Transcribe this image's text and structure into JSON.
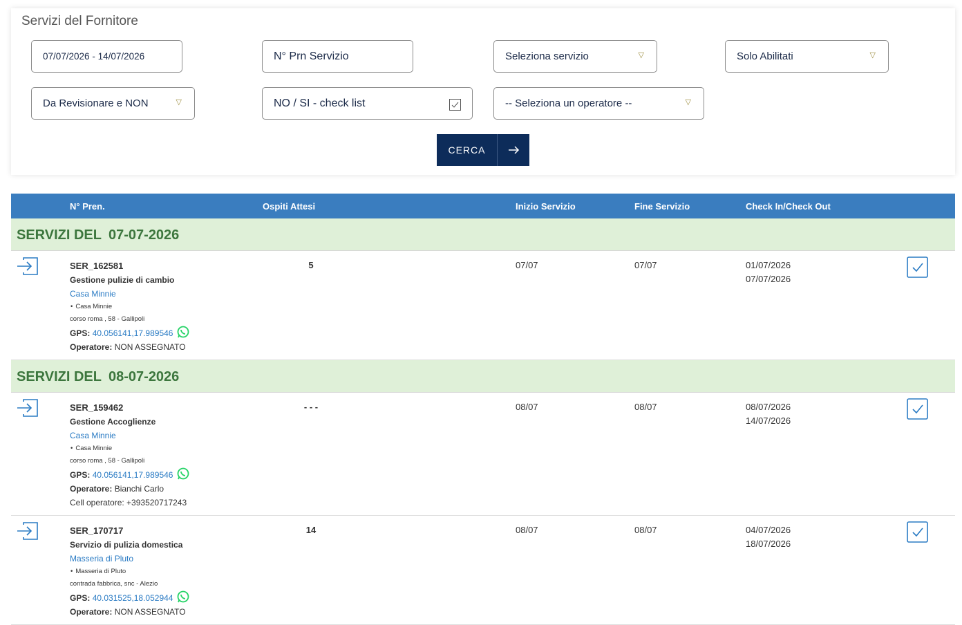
{
  "header": {
    "title": "Servizi del Fornitore"
  },
  "filters": {
    "date_range": "07/07/2026 - 14/07/2026",
    "prn": "N° Prn Servizio",
    "service": "Seleziona servizio",
    "enabled": "Solo Abilitati",
    "review": "Da Revisionare e NON",
    "checklist": "NO / SI - check list",
    "operator": "-- Seleziona un operatore --",
    "search": "CERCA"
  },
  "table": {
    "columns": [
      "N° Pren.",
      "Ospiti Attesi",
      "Inizio Servizio",
      "Fine Servizio",
      "Check In/Check Out"
    ],
    "groups": [
      {
        "label": "SERVIZI DEL",
        "date": "07-07-2026",
        "rows": [
          {
            "code": "SER_162581",
            "service": "Gestione pulizie di cambio",
            "property": "Casa Minnie",
            "property_sub": "Casa Minnie",
            "address": "corso roma , 58 - Gallipoli",
            "gps_label": "GPS:",
            "gps": "40.056141,17.989546",
            "operator_label": "Operatore:",
            "operator": "NON ASSEGNATO",
            "guests": "5",
            "start": "07/07",
            "end": "07/07",
            "check_in": "01/07/2026",
            "check_out": "07/07/2026"
          }
        ]
      },
      {
        "label": "SERVIZI DEL",
        "date": "08-07-2026",
        "rows": [
          {
            "code": "SER_159462",
            "service": "Gestione Accoglienze",
            "property": "Casa Minnie",
            "property_sub": "Casa Minnie",
            "address": "corso roma , 58 - Gallipoli",
            "gps_label": "GPS:",
            "gps": "40.056141,17.989546",
            "operator_label": "Operatore:",
            "operator": "Bianchi Carlo",
            "cell": "Cell operatore: +393520717243",
            "guests": "- - -",
            "start": "08/07",
            "end": "08/07",
            "check_in": "08/07/2026",
            "check_out": "14/07/2026"
          },
          {
            "code": "SER_170717",
            "service": "Servizio di pulizia domestica",
            "property": "Masseria di Pluto",
            "property_sub": "Masseria di Pluto",
            "address": "contrada fabbrica, snc - Alezio",
            "gps_label": "GPS:",
            "gps": "40.031525,18.052944",
            "operator_label": "Operatore:",
            "operator": "NON ASSEGNATO",
            "guests": "14",
            "start": "08/07",
            "end": "08/07",
            "check_in": "04/07/2026",
            "check_out": "18/07/2026"
          }
        ]
      }
    ]
  }
}
